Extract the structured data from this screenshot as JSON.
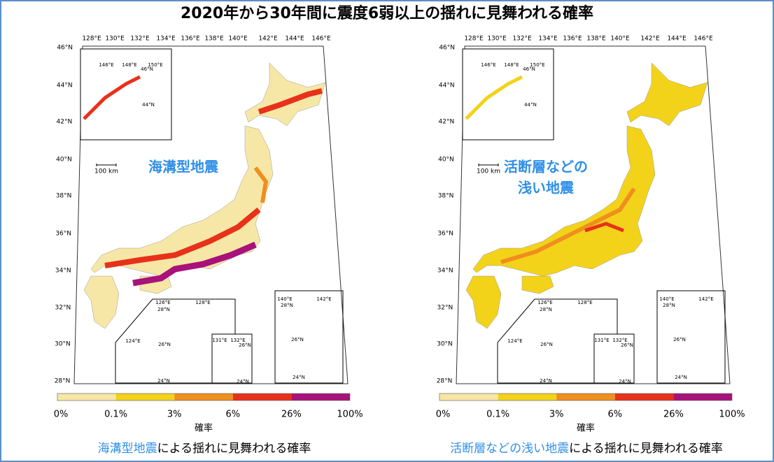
{
  "title": "2020年から30年間に震度6弱以上の揺れに見舞われる確率",
  "lon_labels": [
    "128°E",
    "130°E",
    "132°E",
    "134°E",
    "136°E",
    "138°E",
    "140°E",
    "142°E",
    "144°E",
    "146°E"
  ],
  "lat_labels": [
    "46°N",
    "44°N",
    "42°N",
    "40°N",
    "38°N",
    "36°N",
    "34°N",
    "32°N",
    "30°N",
    "28°N"
  ],
  "inset_labels": [
    "146°E",
    "148°E",
    "150°E",
    "46°N",
    "44°N",
    "126°E",
    "128°E",
    "28°N",
    "124°E",
    "26°N",
    "24°N",
    "131°E",
    "132°E",
    "26°N",
    "24°N",
    "140°E",
    "142°E",
    "28°N",
    "26°N",
    "24°N"
  ],
  "scale": "100 km",
  "legend": {
    "labels": [
      "0%",
      "0.1%",
      "3%",
      "6%",
      "26%",
      "100%"
    ],
    "colors": [
      "#f7e7a6",
      "#f3d21a",
      "#ef8f1e",
      "#e8311a",
      "#a8127a"
    ],
    "title": "確率"
  },
  "maps": [
    {
      "label": [
        "海溝型地震"
      ],
      "caption_highlight": "海溝型地震",
      "caption_rest": "による揺れに見舞われる確率"
    },
    {
      "label": [
        "活断層などの",
        "浅い地震"
      ],
      "caption_highlight": "活断層などの浅い地震",
      "caption_rest": "による揺れに見舞われる確率"
    }
  ]
}
